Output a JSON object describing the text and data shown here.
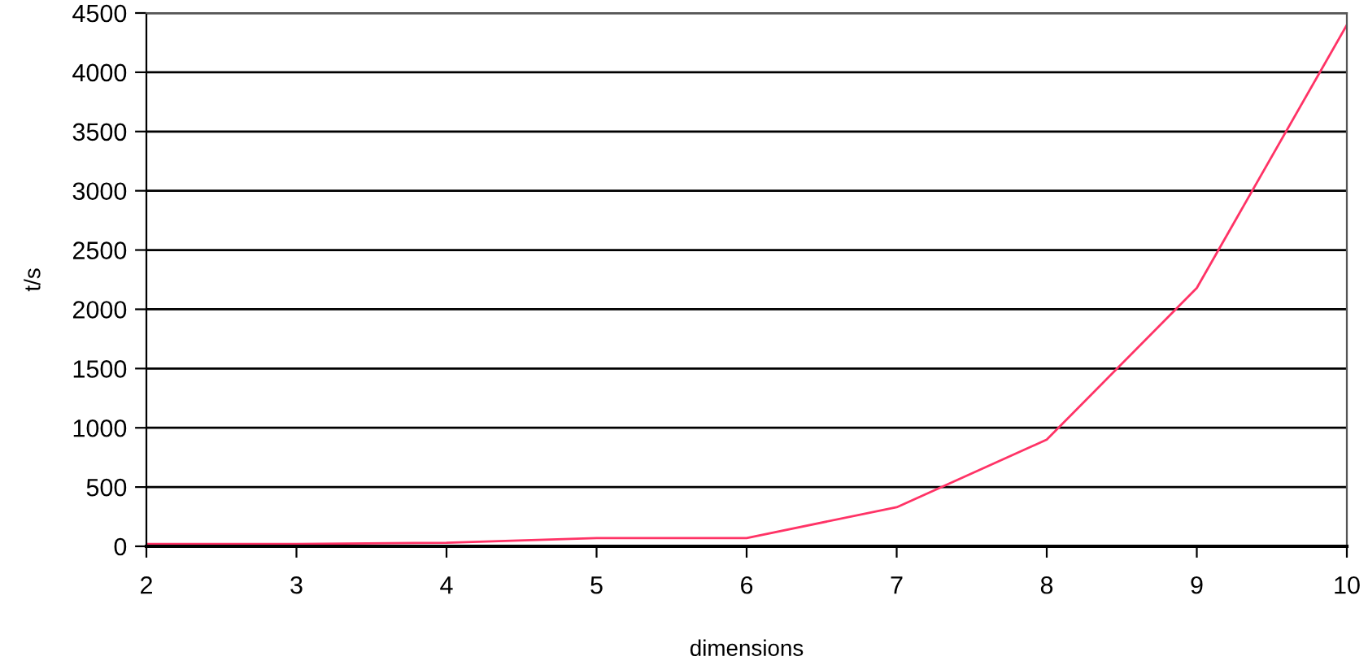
{
  "chart_data": {
    "type": "line",
    "xlabel": "dimensions",
    "ylabel": "t/s",
    "x": [
      2,
      3,
      4,
      5,
      6,
      7,
      8,
      9,
      10
    ],
    "series": [
      {
        "color": "#ff3366",
        "values": [
          20,
          20,
          30,
          70,
          70,
          330,
          900,
          2180,
          4400
        ]
      }
    ],
    "xlim": [
      2,
      10
    ],
    "xticks": [
      2,
      3,
      4,
      5,
      6,
      7,
      8,
      9,
      10
    ],
    "ylim": [
      0,
      4500
    ],
    "yticks": [
      0,
      500,
      1000,
      1500,
      2000,
      2500,
      3000,
      3500,
      4000,
      4500
    ],
    "grid": "y",
    "marker": "none",
    "line_style": "solid"
  }
}
